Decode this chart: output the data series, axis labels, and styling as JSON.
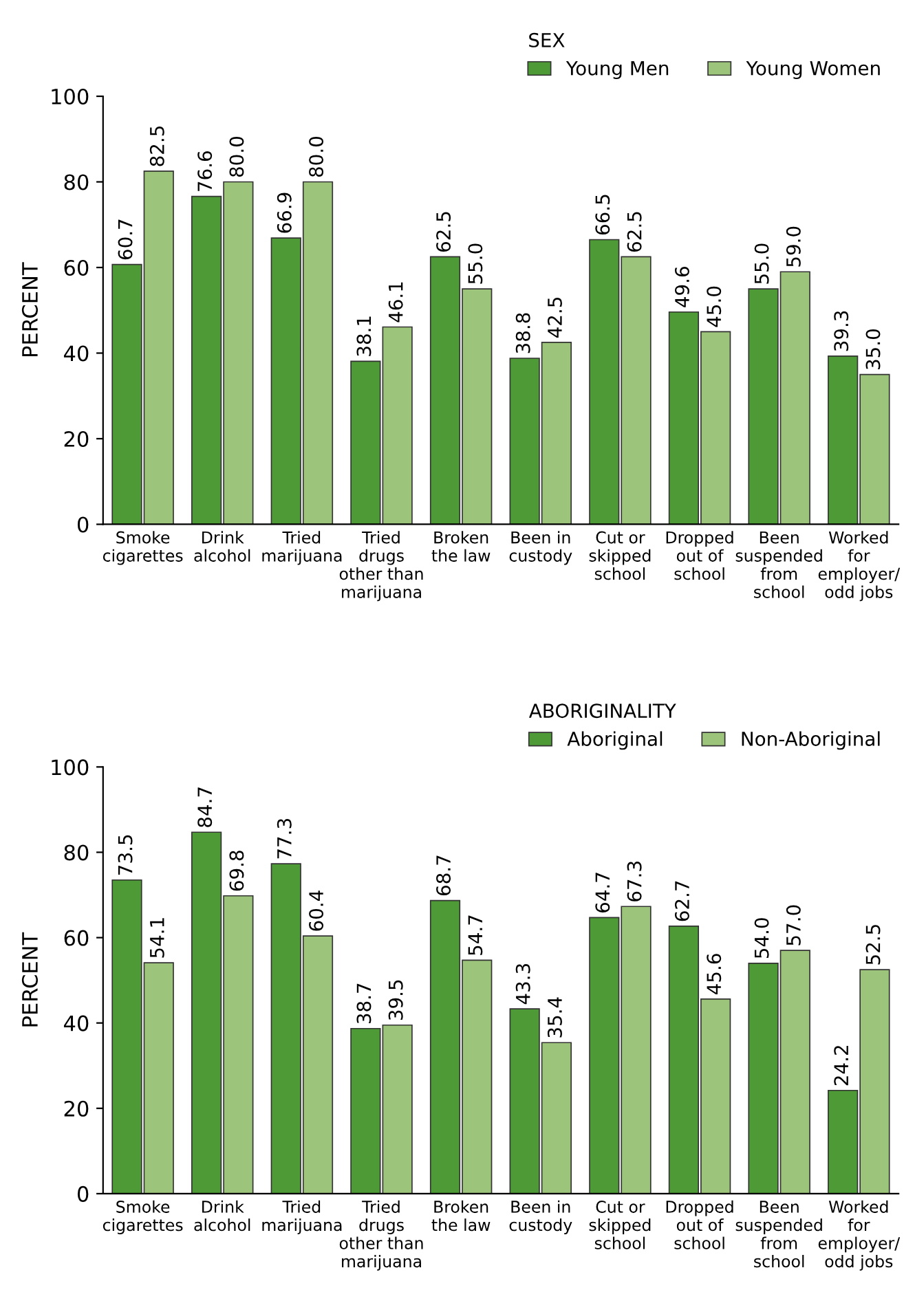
{
  "chart_data": [
    {
      "type": "bar",
      "legend_title": "SEX",
      "ylabel": "PERCENT",
      "categories": [
        "Smoke\ncigarettes",
        "Drink\nalcohol",
        "Tried\nmarijuana",
        "Tried\ndrugs\nother than\nmarijuana",
        "Broken\nthe law",
        "Been in\ncustody",
        "Cut or\nskipped\nschool",
        "Dropped\nout of\nschool",
        "Been\nsuspended\nfrom\nschool",
        "Worked\nfor\nemployer/\nodd jobs"
      ],
      "series": [
        {
          "name": "Young Men",
          "color": "#4e9a36",
          "values": [
            60.7,
            76.6,
            66.9,
            38.1,
            62.5,
            38.8,
            66.5,
            49.6,
            55,
            39.3
          ],
          "value_labels": [
            "60.7",
            "76.6",
            "66.9",
            "38.1",
            "62.5",
            "38.8",
            "66.5",
            "49.6",
            "55.0",
            "39.3"
          ]
        },
        {
          "name": "Young Women",
          "color": "#9cc47a",
          "values": [
            82.5,
            80,
            80,
            46.1,
            55,
            42.5,
            62.5,
            45,
            59,
            35
          ],
          "value_labels": [
            "82.5",
            "80.0",
            "80.0",
            "46.1",
            "55.0",
            "42.5",
            "62.5",
            "45.0",
            "59.0",
            "35.0"
          ]
        }
      ],
      "ylim": [
        0,
        100
      ],
      "yticks": [
        0,
        20,
        40,
        60,
        80,
        100
      ],
      "grid": false,
      "legend": "top right"
    },
    {
      "type": "bar",
      "legend_title": "ABORIGINALITY",
      "ylabel": "PERCENT",
      "categories": [
        "Smoke\ncigarettes",
        "Drink\nalcohol",
        "Tried\nmarijuana",
        "Tried\ndrugs\nother than\nmarijuana",
        "Broken\nthe law",
        "Been in\ncustody",
        "Cut or\nskipped\nschool",
        "Dropped\nout of\nschool",
        "Been\nsuspended\nfrom\nschool",
        "Worked\nfor\nemployer/\nodd jobs"
      ],
      "series": [
        {
          "name": "Aboriginal",
          "color": "#4e9a36",
          "values": [
            73.5,
            84.7,
            77.3,
            38.7,
            68.7,
            43.3,
            64.7,
            62.7,
            54,
            24.2
          ],
          "value_labels": [
            "73.5",
            "84.7",
            "77.3",
            "38.7",
            "68.7",
            "43.3",
            "64.7",
            "62.7",
            "54.0",
            "24.2"
          ]
        },
        {
          "name": "Non-Aboriginal",
          "color": "#9cc47a",
          "values": [
            54.1,
            69.8,
            60.4,
            39.5,
            54.7,
            35.4,
            67.3,
            45.6,
            57,
            52.5
          ],
          "value_labels": [
            "54.1",
            "69.8",
            "60.4",
            "39.5",
            "54.7",
            "35.4",
            "67.3",
            "45.6",
            "57.0",
            "52.5"
          ]
        }
      ],
      "ylim": [
        0,
        100
      ],
      "yticks": [
        0,
        20,
        40,
        60,
        80,
        100
      ],
      "grid": false,
      "legend": "top right"
    }
  ]
}
